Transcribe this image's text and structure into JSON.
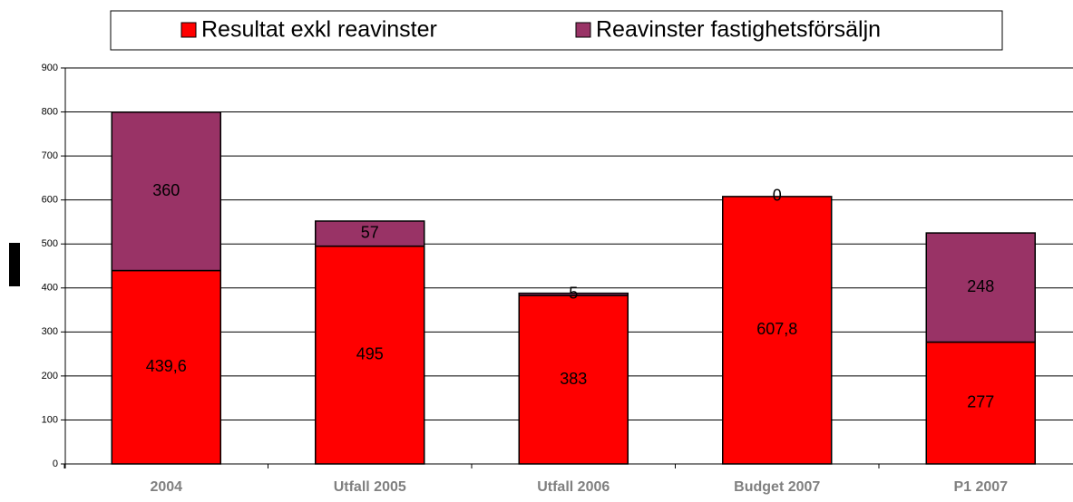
{
  "chart_data": {
    "type": "stacked_bar",
    "categories": [
      "2004",
      "Utfall 2005",
      "Utfall 2006",
      "Budget 2007",
      "P1 2007"
    ],
    "series": [
      {
        "name": "Resultat exkl reavinster",
        "color": "#ff0000",
        "values": [
          439.6,
          495,
          383,
          607.8,
          277
        ],
        "value_labels": [
          "439,6",
          "495",
          "383",
          "607,8",
          "277"
        ]
      },
      {
        "name": "Reavinster fastighetsförsäljn",
        "color": "#993366",
        "values": [
          360,
          57,
          5,
          0,
          248
        ]
      }
    ],
    "ylim": [
      0,
      900
    ],
    "yticks": [
      0,
      100,
      200,
      300,
      400,
      500,
      600,
      700,
      800,
      900
    ],
    "grid": true,
    "legend": "top"
  }
}
